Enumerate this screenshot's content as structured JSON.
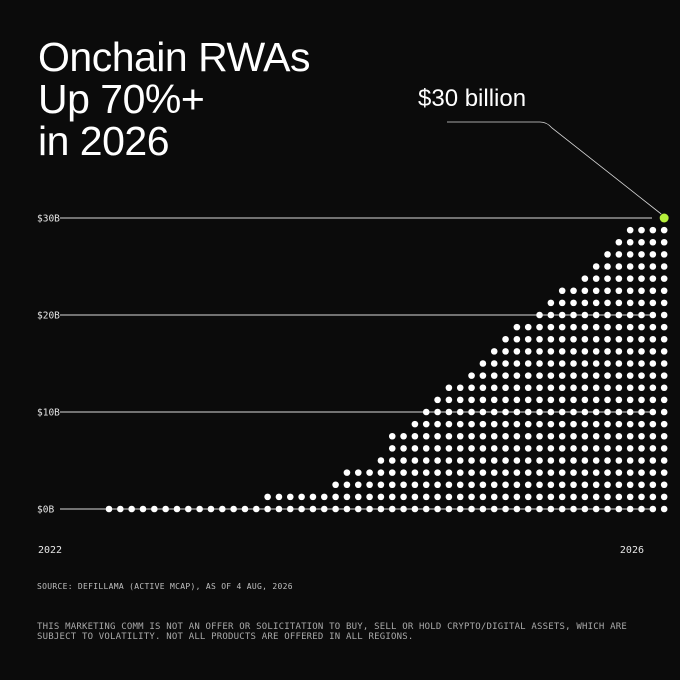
{
  "header": {
    "title_lines": [
      "Onchain RWAs",
      "Up 70%+",
      "in 2026"
    ],
    "callout": "$30 billion"
  },
  "footer": {
    "source": "SOURCE: DEFILLAMA (ACTIVE MCAP), AS OF 4 AUG, 2026",
    "disclaimer": "THIS MARKETING COMM IS NOT AN OFFER OR SOLICITATION TO BUY, SELL OR HOLD CRYPTO/DIGITAL ASSETS, WHICH ARE SUBJECT TO VOLATILITY. NOT ALL PRODUCTS ARE OFFERED IN ALL REGIONS."
  },
  "colors": {
    "background": "#0b0b0b",
    "dots": "#ffffff",
    "highlight": "#b6f03c"
  },
  "chart_data": {
    "type": "dot-column",
    "x_start_label": "2022",
    "x_end_label": "2026",
    "y_unit": "$B",
    "y_ticks": [
      {
        "value": 0,
        "label": "$0B"
      },
      {
        "value": 10,
        "label": "$10B"
      },
      {
        "value": 20,
        "label": "$20B"
      },
      {
        "value": 30,
        "label": "$30B"
      }
    ],
    "ylim": [
      0,
      30
    ],
    "values": [
      0,
      0,
      0,
      0,
      0,
      0,
      0,
      0,
      0,
      0,
      0,
      0,
      0,
      0,
      1.25,
      1.25,
      1.25,
      1.25,
      1.25,
      1.25,
      2.5,
      3.75,
      3.75,
      3.75,
      5,
      7.5,
      7.5,
      8.75,
      10,
      11.25,
      12.5,
      12.5,
      13.75,
      15,
      16.25,
      17.5,
      18.75,
      18.75,
      20,
      21.25,
      22.5,
      22.5,
      23.75,
      25,
      26.25,
      27.5,
      28.75,
      28.75,
      28.75,
      30
    ],
    "highlight_last": true
  }
}
